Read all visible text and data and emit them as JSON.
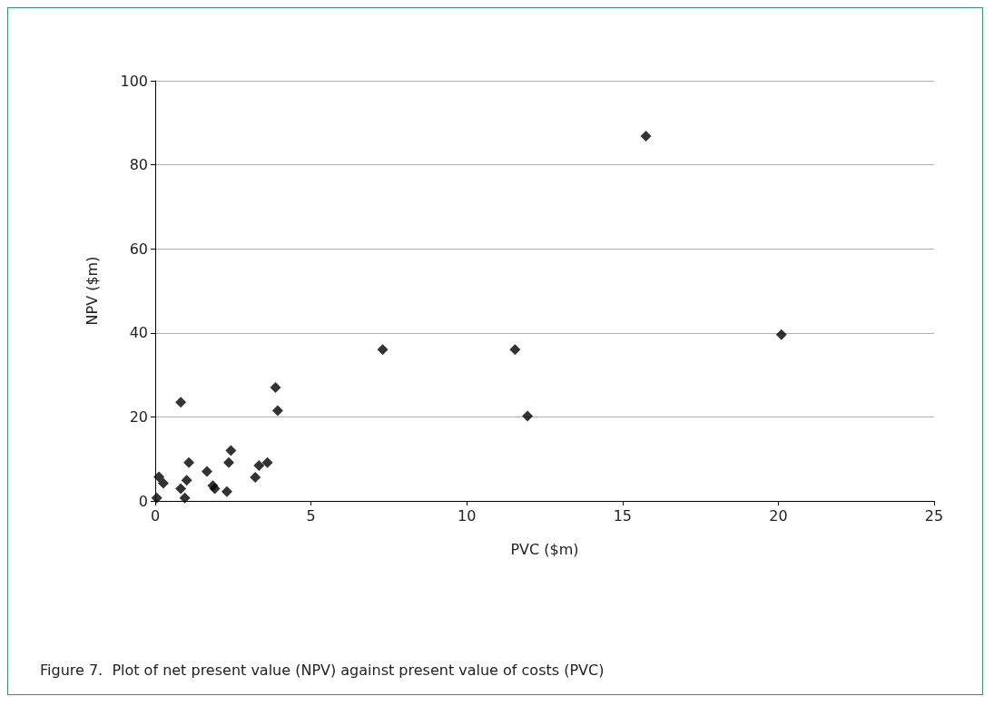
{
  "chart_data": {
    "type": "scatter",
    "title": "Figure 7.  Plot of net present value (NPV) against present value of costs (PVC)",
    "xlabel": "PVC ($m)",
    "ylabel": "NPV ($m)",
    "x": [
      0.05,
      0.12,
      0.26,
      0.82,
      0.82,
      0.95,
      1.01,
      1.08,
      1.66,
      1.85,
      1.91,
      2.3,
      2.36,
      2.43,
      3.21,
      3.33,
      3.6,
      3.86,
      3.93,
      7.3,
      11.55,
      11.95,
      15.75,
      20.1
    ],
    "series": [
      {
        "color": "#000000",
        "values": [
          0.7,
          5.7,
          4.2,
          23.5,
          2.9,
          0.7,
          4.9,
          9.1,
          7.0,
          3.6,
          2.9,
          2.2,
          9.1,
          12.0,
          5.6,
          8.4,
          9.1,
          27.0,
          21.5,
          36,
          36,
          20.2,
          86.8,
          39.6
        ]
      }
    ],
    "xlim": [
      0,
      25
    ],
    "xticks": [
      0,
      5,
      10,
      15,
      20,
      25
    ],
    "ylim": [
      0,
      100
    ],
    "yticks": [
      0,
      20,
      40,
      60,
      80,
      100
    ],
    "grid": "y",
    "marker": "diamond"
  }
}
